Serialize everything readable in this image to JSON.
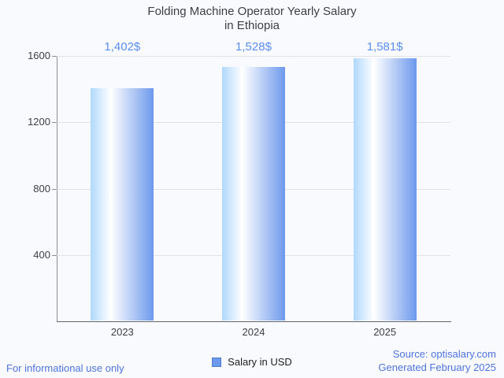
{
  "title": {
    "line1": "Folding Machine Operator Yearly Salary",
    "line2": "in Ethiopia"
  },
  "chart_data": {
    "type": "bar",
    "categories": [
      "2023",
      "2024",
      "2025"
    ],
    "values": [
      1402,
      1528,
      1581
    ],
    "value_labels": [
      "1,402$",
      "1,528$",
      "1,581$"
    ],
    "series": [
      {
        "name": "Salary in USD",
        "values": [
          1402,
          1528,
          1581
        ]
      }
    ],
    "title": "Folding Machine Operator Yearly Salary in Ethiopia",
    "xlabel": "",
    "ylabel": "",
    "ylim": [
      0,
      1600
    ],
    "yticks": [
      400,
      800,
      1200,
      1600
    ],
    "grid": true,
    "legend_position": "bottom"
  },
  "legend": {
    "label": "Salary in USD",
    "swatch_color": "#6d99ec"
  },
  "footer": {
    "left": "For informational use only",
    "source": "Source: optisalary.com",
    "generated": "Generated February 2025"
  },
  "colors": {
    "background": "#f9fafd",
    "title_text": "#3c4043",
    "axis_text": "#3c4043",
    "value_label_blue": "#5b8def",
    "footer_link_blue": "#4e73dd",
    "gridline": "#e1e3e6",
    "axis_line": "#8b8e92",
    "bar_gradient_left": "#b0d8fc",
    "bar_gradient_mid": "#ffffff",
    "bar_gradient_right": "#6d99ec"
  }
}
